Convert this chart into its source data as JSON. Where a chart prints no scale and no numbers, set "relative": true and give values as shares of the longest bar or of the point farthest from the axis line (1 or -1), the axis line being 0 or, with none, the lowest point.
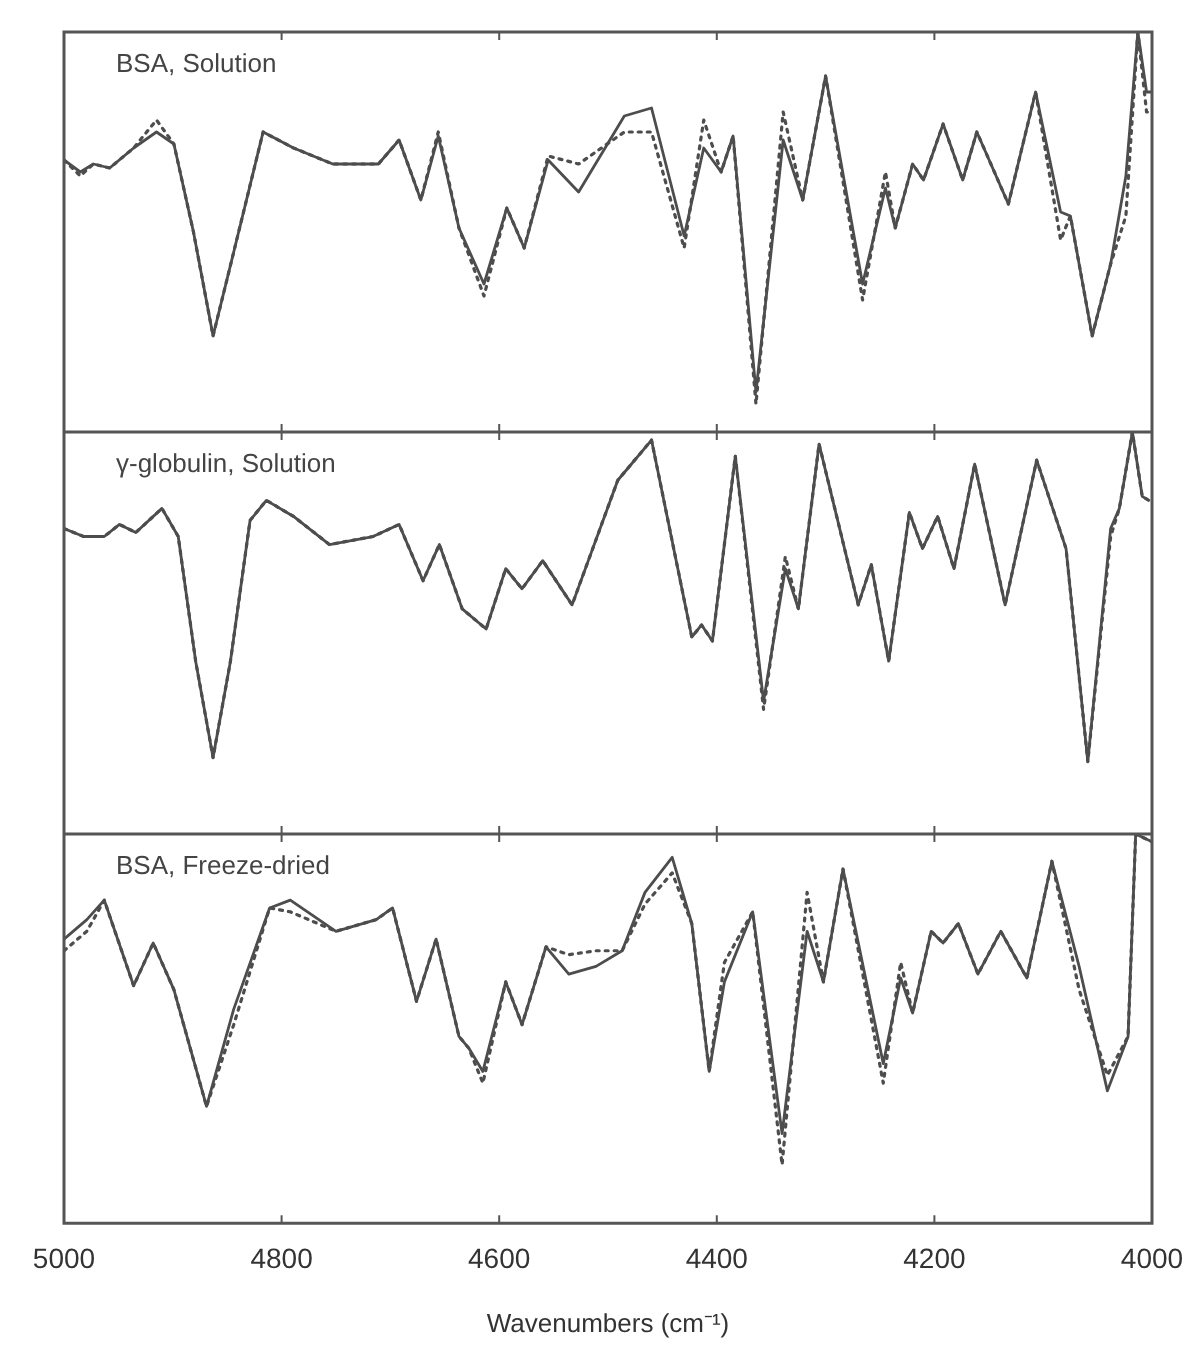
{
  "chart_data": [
    {
      "type": "line",
      "title": "BSA, Solution",
      "relative": true,
      "xlim": [
        5000,
        4000
      ],
      "xticks": [
        5000,
        4800,
        4600,
        4400,
        4200,
        4000
      ],
      "tick_labels": false,
      "x": [
        5000,
        4985,
        4973,
        4958,
        4936,
        4915,
        4899,
        4881,
        4863,
        4844,
        4817,
        4789,
        4753,
        4711,
        4692,
        4672,
        4656,
        4637,
        4614,
        4593,
        4577,
        4555,
        4527,
        4485,
        4460,
        4430,
        4412,
        4396,
        4385,
        4364,
        4339,
        4321,
        4300,
        4266,
        4245,
        4236,
        4220,
        4210,
        4192,
        4174,
        4161,
        4132,
        4107,
        4084,
        4075,
        4055,
        4038,
        4024,
        4013,
        4005,
        4000
      ],
      "series": [
        {
          "color": "#4d4d4d",
          "line_style": "solid",
          "values": [
            0.68,
            0.65,
            0.67,
            0.66,
            0.71,
            0.75,
            0.72,
            0.5,
            0.24,
            0.45,
            0.75,
            0.71,
            0.67,
            0.67,
            0.73,
            0.58,
            0.74,
            0.51,
            0.37,
            0.56,
            0.46,
            0.68,
            0.6,
            0.79,
            0.81,
            0.49,
            0.71,
            0.65,
            0.74,
            0.1,
            0.73,
            0.58,
            0.89,
            0.37,
            0.61,
            0.51,
            0.67,
            0.63,
            0.77,
            0.63,
            0.75,
            0.57,
            0.85,
            0.55,
            0.54,
            0.24,
            0.42,
            0.64,
            1,
            0.85,
            0.85
          ]
        },
        {
          "color": "#4d4d4d",
          "line_style": "dotted",
          "values": [
            0.68,
            0.64,
            0.67,
            0.66,
            0.71,
            0.78,
            0.72,
            0.5,
            0.24,
            0.45,
            0.75,
            0.71,
            0.67,
            0.67,
            0.73,
            0.58,
            0.75,
            0.51,
            0.34,
            0.56,
            0.46,
            0.69,
            0.67,
            0.75,
            0.75,
            0.46,
            0.78,
            0.65,
            0.74,
            0.07,
            0.8,
            0.58,
            0.89,
            0.33,
            0.65,
            0.51,
            0.67,
            0.63,
            0.77,
            0.63,
            0.75,
            0.57,
            0.85,
            0.48,
            0.54,
            0.24,
            0.42,
            0.54,
            1,
            0.8,
            0.8
          ]
        }
      ]
    },
    {
      "type": "line",
      "title": "γ-globulin, Solution",
      "relative": true,
      "xlim": [
        5000,
        4000
      ],
      "xticks": [
        5000,
        4800,
        4600,
        4400,
        4200,
        4000
      ],
      "tick_labels": false,
      "x": [
        5000,
        4982,
        4963,
        4949,
        4934,
        4910,
        4895,
        4879,
        4863,
        4847,
        4829,
        4814,
        4789,
        4756,
        4716,
        4692,
        4670,
        4655,
        4634,
        4612,
        4594,
        4579,
        4560,
        4533,
        4491,
        4460,
        4423,
        4414,
        4404,
        4383,
        4357,
        4337,
        4325,
        4306,
        4270,
        4258,
        4242,
        4223,
        4211,
        4197,
        4182,
        4163,
        4135,
        4106,
        4079,
        4059,
        4038,
        4030,
        4018,
        4009,
        4003
      ],
      "series": [
        {
          "color": "#4d4d4d",
          "line_style": "solid",
          "values": [
            0.76,
            0.74,
            0.74,
            0.77,
            0.75,
            0.81,
            0.74,
            0.43,
            0.19,
            0.43,
            0.78,
            0.83,
            0.79,
            0.72,
            0.74,
            0.77,
            0.63,
            0.72,
            0.56,
            0.51,
            0.66,
            0.61,
            0.68,
            0.57,
            0.88,
            0.98,
            0.49,
            0.52,
            0.48,
            0.94,
            0.33,
            0.66,
            0.56,
            0.97,
            0.57,
            0.67,
            0.43,
            0.8,
            0.71,
            0.79,
            0.66,
            0.92,
            0.57,
            0.93,
            0.71,
            0.18,
            0.76,
            0.81,
            1,
            0.84,
            0.83
          ]
        },
        {
          "color": "#4d4d4d",
          "line_style": "dotted",
          "values": [
            0.76,
            0.74,
            0.74,
            0.77,
            0.75,
            0.81,
            0.74,
            0.43,
            0.19,
            0.43,
            0.78,
            0.83,
            0.79,
            0.72,
            0.74,
            0.77,
            0.63,
            0.72,
            0.56,
            0.51,
            0.66,
            0.61,
            0.68,
            0.57,
            0.88,
            0.98,
            0.49,
            0.52,
            0.48,
            0.94,
            0.31,
            0.69,
            0.56,
            0.97,
            0.57,
            0.67,
            0.43,
            0.8,
            0.71,
            0.79,
            0.66,
            0.92,
            0.57,
            0.93,
            0.71,
            0.18,
            0.74,
            0.81,
            1,
            0.84,
            0.83
          ]
        }
      ]
    },
    {
      "type": "line",
      "title": "BSA, Freeze-dried",
      "xlabel": "Wavenumbers (cm⁻¹)",
      "relative": true,
      "xlim": [
        5000,
        4000
      ],
      "xticks": [
        5000,
        4800,
        4600,
        4400,
        4200,
        4000
      ],
      "tick_labels": "x",
      "x": [
        5000,
        4979,
        4963,
        4936,
        4918,
        4899,
        4869,
        4844,
        4811,
        4792,
        4750,
        4713,
        4698,
        4676,
        4658,
        4637,
        4628,
        4615,
        4594,
        4579,
        4557,
        4536,
        4511,
        4487,
        4466,
        4441,
        4423,
        4407,
        4393,
        4367,
        4340,
        4317,
        4302,
        4284,
        4247,
        4231,
        4220,
        4203,
        4192,
        4178,
        4160,
        4139,
        4115,
        4092,
        4067,
        4041,
        4022,
        4015,
        4000
      ],
      "series": [
        {
          "color": "#4d4d4d",
          "line_style": "solid",
          "values": [
            0.73,
            0.78,
            0.83,
            0.61,
            0.72,
            0.6,
            0.3,
            0.55,
            0.81,
            0.83,
            0.75,
            0.78,
            0.81,
            0.57,
            0.73,
            0.48,
            0.45,
            0.39,
            0.62,
            0.51,
            0.71,
            0.64,
            0.66,
            0.7,
            0.85,
            0.94,
            0.77,
            0.39,
            0.62,
            0.8,
            0.23,
            0.75,
            0.62,
            0.91,
            0.41,
            0.63,
            0.54,
            0.75,
            0.72,
            0.77,
            0.64,
            0.75,
            0.63,
            0.93,
            0.66,
            0.34,
            0.48,
            1,
            0.98
          ]
        },
        {
          "color": "#4d4d4d",
          "line_style": "dotted",
          "values": [
            0.7,
            0.75,
            0.83,
            0.61,
            0.72,
            0.6,
            0.3,
            0.51,
            0.81,
            0.8,
            0.75,
            0.78,
            0.81,
            0.57,
            0.73,
            0.48,
            0.45,
            0.36,
            0.62,
            0.51,
            0.71,
            0.69,
            0.7,
            0.7,
            0.82,
            0.9,
            0.77,
            0.39,
            0.67,
            0.8,
            0.15,
            0.85,
            0.62,
            0.91,
            0.36,
            0.67,
            0.54,
            0.75,
            0.72,
            0.77,
            0.64,
            0.75,
            0.63,
            0.93,
            0.6,
            0.38,
            0.48,
            1,
            0.98
          ]
        }
      ]
    }
  ]
}
